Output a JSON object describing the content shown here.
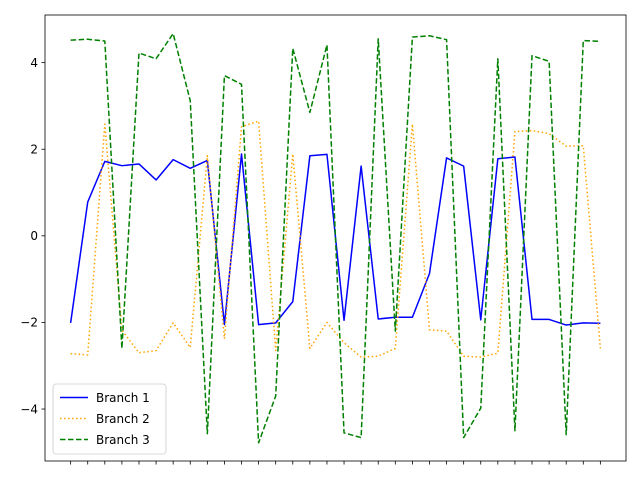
{
  "chart_data": {
    "type": "line",
    "title": "",
    "xlabel": "",
    "ylabel": "",
    "x_tick_labels": "none",
    "ylim": [
      -5.2,
      5.1
    ],
    "y_ticks": [
      -4,
      -2,
      0,
      2,
      4
    ],
    "y_tick_labels": [
      "−4",
      "−2",
      "0",
      "2",
      "4"
    ],
    "grid": false,
    "legend_position": "lower-left",
    "x": [
      0,
      1,
      2,
      3,
      4,
      5,
      6,
      7,
      8,
      9,
      10,
      11,
      12,
      13,
      14,
      15,
      16,
      17,
      18,
      19,
      20,
      21,
      22,
      23,
      24,
      25,
      26,
      27,
      28,
      29,
      30,
      31
    ],
    "series": [
      {
        "name": "Branch 1",
        "color": "#0000ff",
        "style": "solid",
        "values": [
          -2.01,
          0.78,
          1.72,
          1.62,
          1.66,
          1.29,
          1.76,
          1.56,
          1.74,
          -2.05,
          1.89,
          -2.05,
          -2.01,
          -1.52,
          1.85,
          1.88,
          -1.95,
          1.61,
          -1.92,
          -1.88,
          -1.88,
          -0.87,
          1.8,
          1.61,
          -1.94,
          1.78,
          1.82,
          -1.93,
          -1.93,
          -2.06,
          -2.01,
          -2.02
        ]
      },
      {
        "name": "Branch 2",
        "color": "#ffa500",
        "style": "dotted",
        "values": [
          -2.72,
          -2.75,
          2.58,
          -2.18,
          -2.7,
          -2.65,
          -2.01,
          -2.58,
          1.85,
          -2.38,
          2.52,
          2.65,
          -2.65,
          1.89,
          -2.6,
          -2.0,
          -2.47,
          -2.8,
          -2.78,
          -2.6,
          2.58,
          -2.17,
          -2.2,
          -2.78,
          -2.8,
          -2.71,
          2.41,
          2.43,
          2.36,
          2.07,
          2.08,
          -2.6
        ]
      },
      {
        "name": "Branch 3",
        "color": "#008000",
        "style": "dashed",
        "values": [
          4.52,
          4.54,
          4.5,
          -2.6,
          4.22,
          4.09,
          4.67,
          3.12,
          -4.57,
          3.7,
          3.5,
          -4.78,
          -3.7,
          4.33,
          2.85,
          4.41,
          -4.55,
          -4.66,
          4.55,
          -2.2,
          4.59,
          4.62,
          4.53,
          -4.66,
          -3.98,
          4.09,
          -4.5,
          4.16,
          4.03,
          -4.59,
          4.51,
          4.49
        ]
      }
    ]
  }
}
